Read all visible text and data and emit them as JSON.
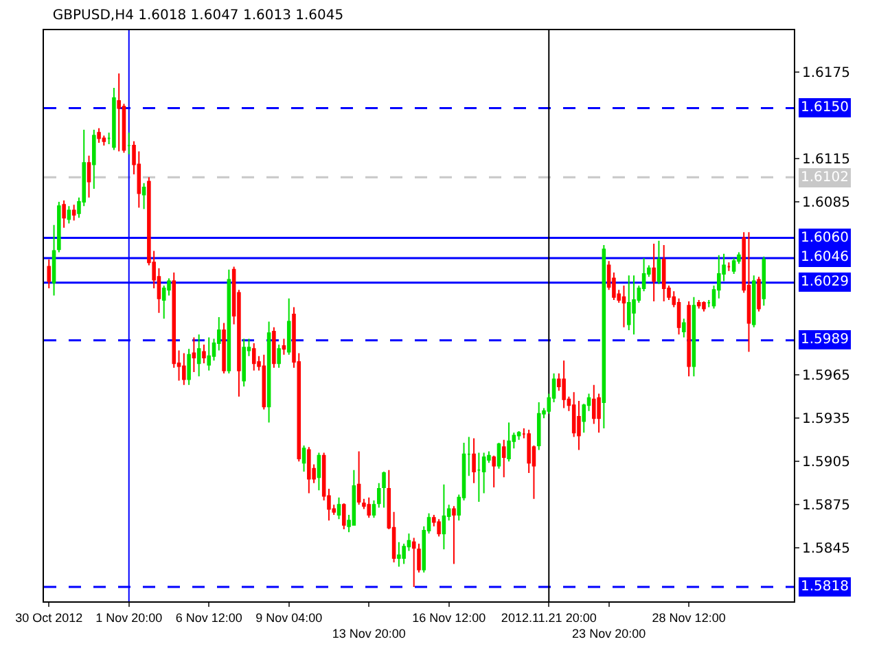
{
  "chart_data": {
    "type": "candlestick",
    "title": "GBPUSD,H4 1.6018 1.6047 1.6013 1.6045",
    "categories": [
      "30 Oct 2012",
      null,
      null,
      null,
      null,
      null,
      null,
      null,
      null,
      null,
      null,
      null,
      null,
      null,
      null,
      null,
      "1 Nov 20:00",
      null,
      null,
      null,
      null,
      null,
      null,
      null,
      null,
      null,
      null,
      null,
      null,
      null,
      null,
      null,
      "6 Nov 12:00",
      null,
      null,
      null,
      null,
      null,
      null,
      null,
      null,
      null,
      null,
      null,
      null,
      null,
      null,
      null,
      "9 Nov 04:00",
      null,
      null,
      null,
      null,
      null,
      null,
      null,
      null,
      null,
      null,
      null,
      null,
      null,
      null,
      null,
      "13 Nov 20:00",
      null,
      null,
      null,
      null,
      null,
      null,
      null,
      null,
      null,
      null,
      null,
      null,
      null,
      null,
      null,
      "16 Nov 12:00",
      null,
      null,
      null,
      null,
      null,
      null,
      null,
      null,
      null,
      null,
      null,
      null,
      null,
      null,
      null,
      null,
      null,
      null,
      null,
      "2012.11.21 20:00",
      null,
      null,
      null,
      null,
      null,
      null,
      null,
      null,
      null,
      null,
      null,
      "23 Nov 20:00",
      null,
      null,
      null,
      null,
      null,
      null,
      null,
      null,
      null,
      null,
      null,
      null,
      null,
      null,
      null,
      "28 Nov 12:00",
      null,
      null,
      null,
      null,
      null,
      null,
      null,
      null,
      null,
      null,
      null,
      null,
      null,
      null,
      null
    ],
    "ohlc": [
      [
        1.604,
        1.6045,
        1.6025,
        1.603
      ],
      [
        1.6029,
        1.6069,
        1.602,
        1.6051
      ],
      [
        1.6052,
        1.6085,
        1.605,
        1.6082
      ],
      [
        1.6083,
        1.6086,
        1.6067,
        1.6074
      ],
      [
        1.6073,
        1.6082,
        1.607,
        1.6079
      ],
      [
        1.6079,
        1.6083,
        1.6072,
        1.6076
      ],
      [
        1.6077,
        1.6088,
        1.6074,
        1.6085
      ],
      [
        1.6085,
        1.6135,
        1.6082,
        1.6112
      ],
      [
        1.6112,
        1.6117,
        1.6088,
        1.6099
      ],
      [
        1.6111,
        1.6135,
        1.6094,
        1.6131
      ],
      [
        1.6133,
        1.6136,
        1.6126,
        1.6129
      ],
      [
        1.6129,
        1.6131,
        1.6124,
        1.6127
      ],
      [
        1.6129,
        1.6133,
        1.6125,
        1.6129
      ],
      [
        1.6123,
        1.6164,
        1.6121,
        1.6157
      ],
      [
        1.6155,
        1.6174,
        1.612,
        1.615
      ],
      [
        1.6151,
        1.6153,
        1.6119,
        1.6121
      ],
      [
        1.6124,
        1.6133,
        1.6118,
        1.6124
      ],
      [
        1.6124,
        1.6127,
        1.6104,
        1.6111
      ],
      [
        1.6111,
        1.612,
        1.6081,
        1.6091
      ],
      [
        1.609,
        1.6098,
        1.608,
        1.6095
      ],
      [
        1.6099,
        1.6102,
        1.6041,
        1.6043
      ],
      [
        1.6043,
        1.6051,
        1.6025,
        1.6031
      ],
      [
        1.6033,
        1.6039,
        1.6008,
        1.6018
      ],
      [
        1.6017,
        1.6027,
        1.6004,
        1.6025
      ],
      [
        1.6024,
        1.6032,
        1.602,
        1.603
      ],
      [
        1.603,
        1.6036,
        1.597,
        1.5973
      ],
      [
        1.5973,
        1.5982,
        1.5961,
        1.5971
      ],
      [
        1.5971,
        1.598,
        1.5958,
        1.5962
      ],
      [
        1.5962,
        1.5983,
        1.5958,
        1.5979
      ],
      [
        1.598,
        1.5991,
        1.5967,
        1.5977
      ],
      [
        1.5973,
        1.5993,
        1.5964,
        1.5983
      ],
      [
        1.5981,
        1.5986,
        1.5973,
        1.5977
      ],
      [
        1.5972,
        1.5991,
        1.5968,
        1.5978
      ],
      [
        1.5978,
        1.599,
        1.5975,
        1.5987
      ],
      [
        1.5987,
        1.6005,
        1.5982,
        1.5996
      ],
      [
        1.5996,
        1.6001,
        1.5966,
        1.5968
      ],
      [
        1.5968,
        1.6038,
        1.5966,
        1.6031
      ],
      [
        1.6038,
        1.604,
        1.6,
        1.6006
      ],
      [
        1.6022,
        1.6024,
        1.595,
        1.5968
      ],
      [
        1.5961,
        1.599,
        1.5957,
        1.5984
      ],
      [
        1.5982,
        1.599,
        1.5978,
        1.5984
      ],
      [
        1.5983,
        1.5987,
        1.5968,
        1.5973
      ],
      [
        1.5974,
        1.5978,
        1.5968,
        1.5971
      ],
      [
        1.5971,
        1.5979,
        1.5941,
        1.5943
      ],
      [
        1.5943,
        1.6002,
        1.5932,
        1.5994
      ],
      [
        1.5995,
        1.5998,
        1.597,
        1.5973
      ],
      [
        1.5973,
        1.5986,
        1.597,
        1.5983
      ],
      [
        1.5985,
        1.599,
        1.5979,
        1.5983
      ],
      [
        1.5981,
        1.6018,
        1.5979,
        1.6002
      ],
      [
        1.6007,
        1.6012,
        1.597,
        1.5974
      ],
      [
        1.5974,
        1.598,
        1.5905,
        1.5907
      ],
      [
        1.5904,
        1.5916,
        1.5898,
        1.5914
      ],
      [
        1.5913,
        1.5915,
        1.5883,
        1.5893
      ],
      [
        1.59,
        1.5903,
        1.589,
        1.5893
      ],
      [
        1.5894,
        1.5911,
        1.5885,
        1.5909
      ],
      [
        1.5909,
        1.5911,
        1.5878,
        1.5881
      ],
      [
        1.5881,
        1.5886,
        1.5864,
        1.5872
      ],
      [
        1.5872,
        1.5875,
        1.5868,
        1.587
      ],
      [
        1.5868,
        1.588,
        1.5865,
        1.5875
      ],
      [
        1.5875,
        1.5876,
        1.5858,
        1.5861
      ],
      [
        1.586,
        1.5868,
        1.5856,
        1.5864
      ],
      [
        1.5861,
        1.5899,
        1.5861,
        1.5888
      ],
      [
        1.5889,
        1.5912,
        1.5875,
        1.5877
      ],
      [
        1.5876,
        1.5879,
        1.5872,
        1.5874
      ],
      [
        1.5875,
        1.588,
        1.5866,
        1.5868
      ],
      [
        1.5868,
        1.5878,
        1.5866,
        1.5875
      ],
      [
        1.5876,
        1.589,
        1.5873,
        1.5886
      ],
      [
        1.5887,
        1.5898,
        1.5873,
        1.5897
      ],
      [
        1.5886,
        1.5899,
        1.5858,
        1.5859
      ],
      [
        1.5859,
        1.587,
        1.5835,
        1.5838
      ],
      [
        1.5838,
        1.5849,
        1.5832,
        1.584
      ],
      [
        1.5838,
        1.5848,
        1.5834,
        1.5846
      ],
      [
        1.5846,
        1.5855,
        1.5843,
        1.585
      ],
      [
        1.5849,
        1.5852,
        1.5818,
        1.5845
      ],
      [
        1.5844,
        1.5848,
        1.5828,
        1.583
      ],
      [
        1.583,
        1.586,
        1.5828,
        1.5857
      ],
      [
        1.5857,
        1.5869,
        1.5855,
        1.5866
      ],
      [
        1.5866,
        1.5868,
        1.586,
        1.5863
      ],
      [
        1.5863,
        1.5865,
        1.5853,
        1.5855
      ],
      [
        1.5855,
        1.5889,
        1.5844,
        1.5867
      ],
      [
        1.5867,
        1.5875,
        1.5864,
        1.5872
      ],
      [
        1.5872,
        1.5874,
        1.5834,
        1.5868
      ],
      [
        1.5868,
        1.5882,
        1.5864,
        1.588
      ],
      [
        1.588,
        1.5918,
        1.5878,
        1.591
      ],
      [
        1.591,
        1.5922,
        1.5895,
        1.591
      ],
      [
        1.591,
        1.5921,
        1.589,
        1.5898
      ],
      [
        1.5899,
        1.5911,
        1.5877,
        1.5899
      ],
      [
        1.5898,
        1.5911,
        1.5883,
        1.5908
      ],
      [
        1.5906,
        1.5912,
        1.5904,
        1.5909
      ],
      [
        1.5908,
        1.5909,
        1.5887,
        1.5902
      ],
      [
        1.5902,
        1.5918,
        1.59,
        1.5917
      ],
      [
        1.5915,
        1.592,
        1.5894,
        1.5908
      ],
      [
        1.5907,
        1.5932,
        1.5905,
        1.5919
      ],
      [
        1.5919,
        1.5925,
        1.5914,
        1.5923
      ],
      [
        1.5923,
        1.5926,
        1.592,
        1.5925
      ],
      [
        1.5924,
        1.5928,
        1.5921,
        1.5924
      ],
      [
        1.5924,
        1.5927,
        1.5897,
        1.5904
      ],
      [
        1.5915,
        1.5916,
        1.5879,
        1.5902
      ],
      [
        1.5916,
        1.5946,
        1.5913,
        1.5938
      ],
      [
        1.5938,
        1.5942,
        1.5935,
        1.594
      ],
      [
        1.594,
        1.5952,
        1.5938,
        1.5949
      ],
      [
        1.5949,
        1.5966,
        1.5946,
        1.5962
      ],
      [
        1.5962,
        1.5966,
        1.5954,
        1.5957
      ],
      [
        1.5962,
        1.5975,
        1.5942,
        1.5948
      ],
      [
        1.5948,
        1.595,
        1.594,
        1.5944
      ],
      [
        1.5944,
        1.5953,
        1.5922,
        1.5925
      ],
      [
        1.5936,
        1.5947,
        1.5913,
        1.5923
      ],
      [
        1.5933,
        1.5945,
        1.5925,
        1.5944
      ],
      [
        1.5944,
        1.5952,
        1.594,
        1.5949
      ],
      [
        1.5948,
        1.5958,
        1.5931,
        1.5935
      ],
      [
        1.5949,
        1.5952,
        1.5925,
        1.5935
      ],
      [
        1.5946,
        1.6055,
        1.5928,
        1.6052
      ],
      [
        1.6041,
        1.6044,
        1.6024,
        1.6026
      ],
      [
        1.6032,
        1.6036,
        1.6017,
        1.6019
      ],
      [
        1.6021,
        1.6024,
        1.6015,
        1.6017
      ],
      [
        1.6019,
        1.6027,
        1.5998,
        1.6015
      ],
      [
        1.6,
        1.6034,
        1.5996,
        1.6015
      ],
      [
        1.6008,
        1.6034,
        1.5993,
        1.6017
      ],
      [
        1.6017,
        1.6027,
        1.6015,
        1.6025
      ],
      [
        1.6025,
        1.6046,
        1.6023,
        1.6035
      ],
      [
        1.6035,
        1.6041,
        1.6033,
        1.6039
      ],
      [
        1.6039,
        1.6056,
        1.6016,
        1.603
      ],
      [
        1.603,
        1.6058,
        1.6028,
        1.6045
      ],
      [
        1.6045,
        1.6055,
        1.6016,
        1.6025
      ],
      [
        1.6025,
        1.6027,
        1.6017,
        1.6019
      ],
      [
        1.6019,
        1.6023,
        1.6012,
        1.6014
      ],
      [
        1.6015,
        1.6018,
        1.5993,
        1.5998
      ],
      [
        1.5995,
        1.6004,
        1.5991,
        1.6001
      ],
      [
        1.6013,
        1.6016,
        1.5964,
        1.5971
      ],
      [
        1.5971,
        1.6019,
        1.5964,
        1.6013
      ],
      [
        1.6015,
        1.6017,
        1.6011,
        1.6013
      ],
      [
        1.6015,
        1.6016,
        1.6009,
        1.6011
      ],
      [
        1.6015,
        1.6017,
        1.6012,
        1.6015
      ],
      [
        1.6013,
        1.6027,
        1.6011,
        1.6024
      ],
      [
        1.6024,
        1.6048,
        1.6018,
        1.6035
      ],
      [
        1.6035,
        1.6049,
        1.603,
        1.6041
      ],
      [
        1.604,
        1.6043,
        1.6037,
        1.604
      ],
      [
        1.6037,
        1.6046,
        1.6035,
        1.6044
      ],
      [
        1.6044,
        1.605,
        1.6042,
        1.6048
      ],
      [
        1.606,
        1.6064,
        1.6022,
        1.6024
      ],
      [
        1.6027,
        1.6064,
        1.5981,
        1.6001
      ],
      [
        1.6,
        1.6034,
        1.5998,
        1.603
      ],
      [
        1.6031,
        1.6033,
        1.6009,
        1.6011
      ],
      [
        1.6018,
        1.6047,
        1.6013,
        1.6045
      ]
    ],
    "ylim": [
      1.5808,
      1.6204
    ],
    "yticks": [
      1.6175,
      1.6115,
      1.6085,
      1.5965,
      1.5935,
      1.5905,
      1.5875,
      1.5845
    ],
    "ref_lines": [
      {
        "axis": "y",
        "value": 1.615,
        "label": "1.6150",
        "color": "#0000ff",
        "line_style": "dashed"
      },
      {
        "axis": "y",
        "value": 1.6102,
        "label": "1.6102",
        "color": "#c8c8c8",
        "line_style": "dashed"
      },
      {
        "axis": "y",
        "value": 1.606,
        "label": "1.6060",
        "color": "#0000ff",
        "line_style": "solid"
      },
      {
        "axis": "y",
        "value": 1.6046,
        "label": "1.6046",
        "color": "#0000ff",
        "line_style": "solid"
      },
      {
        "axis": "y",
        "value": 1.6029,
        "label": "1.6029",
        "color": "#0000ff",
        "line_style": "solid"
      },
      {
        "axis": "y",
        "value": 1.5989,
        "label": "1.5989",
        "color": "#0000ff",
        "line_style": "dashed"
      },
      {
        "axis": "y",
        "value": 1.5818,
        "label": "1.5818",
        "color": "#0000ff",
        "line_style": "dashed"
      },
      {
        "axis": "x",
        "value": "1 Nov 20:00",
        "color": "#0000ff",
        "line_style": "solid"
      },
      {
        "axis": "x",
        "value": "2012.11.21 20:00",
        "color": "#000000",
        "line_style": "solid"
      }
    ],
    "grid": false
  }
}
